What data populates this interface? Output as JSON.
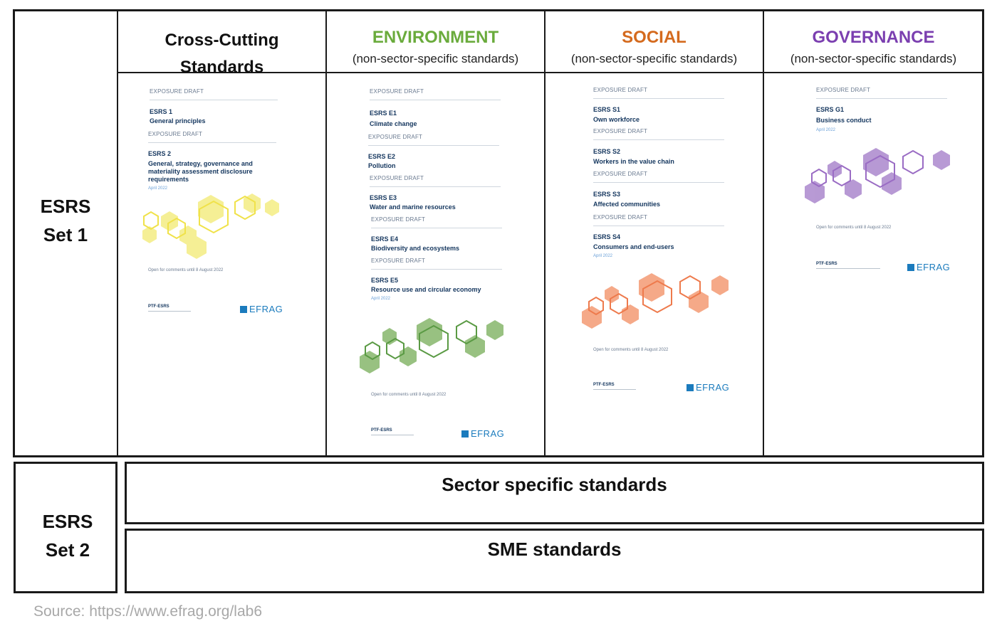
{
  "set1": {
    "label_line1": "ESRS",
    "label_line2": "Set 1"
  },
  "set2": {
    "label_line1": "ESRS",
    "label_line2": "Set 2"
  },
  "columns": [
    {
      "title_line1": "Cross-Cutting",
      "title_line2": "Standards",
      "color": "#111111"
    },
    {
      "title": "ENVIRONMENT",
      "subtitle": "(non-sector-specific standards)",
      "color": "#6aab3c"
    },
    {
      "title": "SOCIAL",
      "subtitle": "(non-sector-specific standards)",
      "color": "#d46a1e"
    },
    {
      "title": "GOVERNANCE",
      "subtitle": "(non-sector-specific standards)",
      "color": "#7b3fb0"
    }
  ],
  "covers": {
    "draft_label": "EXPOSURE DRAFT",
    "date_label": "April 2022",
    "open_label": "Open for comments until 8 August 2022",
    "ptf_label": "PTF-ESRS",
    "efrag_label": "EFRAG",
    "cross": [
      {
        "code": "ESRS 1",
        "name": "General principles"
      },
      {
        "code": "ESRS 2",
        "name1": "General, strategy, governance and",
        "name2": "materiality assessment disclosure",
        "name3": "requirements"
      }
    ],
    "env": [
      {
        "code": "ESRS E1",
        "name": "Climate change"
      },
      {
        "code": "ESRS E2",
        "name": "Pollution"
      },
      {
        "code": "ESRS E3",
        "name": "Water and marine resources"
      },
      {
        "code": "ESRS E4",
        "name": "Biodiversity and ecosystems"
      },
      {
        "code": "ESRS E5",
        "name": "Resource use and circular economy"
      }
    ],
    "soc": [
      {
        "code": "ESRS S1",
        "name": "Own workforce"
      },
      {
        "code": "ESRS S2",
        "name": "Workers in the value chain"
      },
      {
        "code": "ESRS S3",
        "name": "Affected communities"
      },
      {
        "code": "ESRS S4",
        "name": "Consumers and end-users"
      }
    ],
    "gov": [
      {
        "code": "ESRS G1",
        "name": "Business conduct"
      }
    ]
  },
  "set2_rows": {
    "sector": "Sector specific standards",
    "sme": "SME standards"
  },
  "source": "Source: https://www.efrag.org/lab6",
  "colors": {
    "cross": "#f2e86a",
    "env": "#7fb069",
    "soc": "#f28c5e",
    "gov": "#a47bc6"
  }
}
